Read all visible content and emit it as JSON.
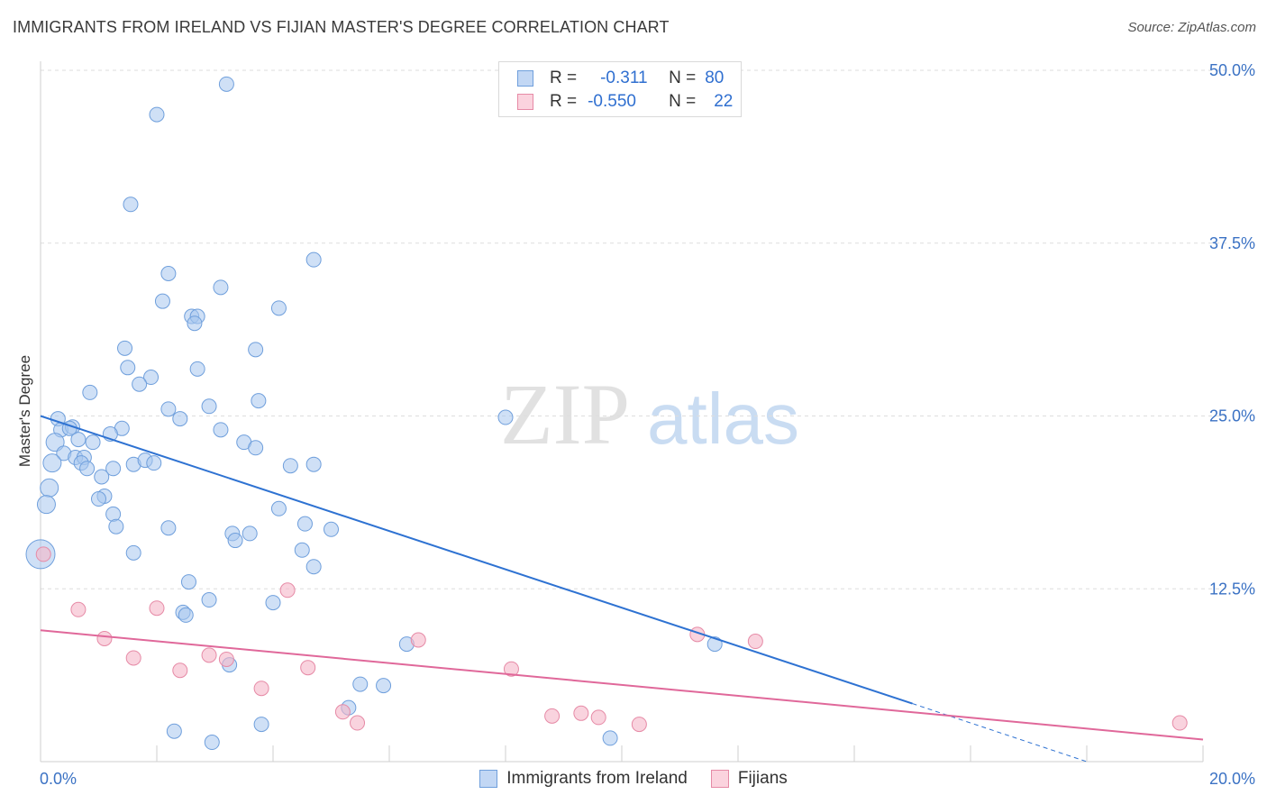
{
  "header": {
    "title": "IMMIGRANTS FROM IRELAND VS FIJIAN MASTER'S DEGREE CORRELATION CHART",
    "source": "Source: ZipAtlas.com"
  },
  "watermark": {
    "part1": "ZIP",
    "part2": "atlas"
  },
  "stats": [
    {
      "r_label": "R =",
      "r_value": "-0.311",
      "n_label": "N =",
      "n_value": "80",
      "color": "#a8c6ef"
    },
    {
      "r_label": "R =",
      "r_value": "-0.550",
      "n_label": "N =",
      "n_value": "22",
      "color": "#f5b6c8"
    }
  ],
  "legend": [
    {
      "label": "Immigrants from Ireland",
      "color": "#a8c6ef"
    },
    {
      "label": "Fijians",
      "color": "#f5b6c8"
    }
  ],
  "chart_data": {
    "type": "scatter",
    "title": "IMMIGRANTS FROM IRELAND VS FIJIAN MASTER'S DEGREE CORRELATION CHART",
    "xlabel": "",
    "ylabel": "Master's Degree",
    "xlim": [
      0,
      20
    ],
    "ylim": [
      0,
      50
    ],
    "x_tick_labels": [
      "0.0%",
      "20.0%"
    ],
    "y_tick_labels": [
      "50.0%",
      "37.5%",
      "25.0%",
      "12.5%"
    ],
    "y_ticks": [
      50,
      37.5,
      25,
      12.5
    ],
    "colors": {
      "blue_fill": "#a8c6ef",
      "blue_stroke": "#6f9fdc",
      "blue_line": "#2e72d2",
      "pink_fill": "#f5b6c8",
      "pink_stroke": "#e68aa6",
      "pink_line": "#e0689a",
      "tick_text": "#3b72c4"
    },
    "series": [
      {
        "name": "Immigrants from Ireland",
        "points": [
          [
            3.2,
            49
          ],
          [
            2.0,
            46.8
          ],
          [
            1.55,
            40.3
          ],
          [
            4.7,
            36.3
          ],
          [
            2.2,
            35.3
          ],
          [
            3.1,
            34.3
          ],
          [
            2.1,
            33.3
          ],
          [
            4.1,
            32.8
          ],
          [
            2.6,
            32.2
          ],
          [
            2.7,
            32.2
          ],
          [
            2.65,
            31.7
          ],
          [
            1.45,
            29.9
          ],
          [
            3.7,
            29.8
          ],
          [
            1.5,
            28.5
          ],
          [
            2.7,
            28.4
          ],
          [
            1.9,
            27.8
          ],
          [
            1.7,
            27.3
          ],
          [
            0.85,
            26.7
          ],
          [
            3.75,
            26.1
          ],
          [
            2.9,
            25.7
          ],
          [
            2.2,
            25.5
          ],
          [
            2.4,
            24.8
          ],
          [
            8.0,
            24.9
          ],
          [
            0.3,
            24.8
          ],
          [
            0.35,
            24.0
          ],
          [
            0.55,
            24.2
          ],
          [
            0.5,
            24.1
          ],
          [
            1.4,
            24.1
          ],
          [
            3.1,
            24.0
          ],
          [
            1.2,
            23.7
          ],
          [
            0.25,
            23.1
          ],
          [
            0.65,
            23.3
          ],
          [
            0.9,
            23.1
          ],
          [
            3.5,
            23.1
          ],
          [
            0.4,
            22.3
          ],
          [
            3.7,
            22.7
          ],
          [
            0.6,
            22.0
          ],
          [
            0.75,
            22.0
          ],
          [
            1.6,
            21.5
          ],
          [
            1.8,
            21.8
          ],
          [
            1.95,
            21.6
          ],
          [
            1.25,
            21.2
          ],
          [
            0.7,
            21.6
          ],
          [
            0.8,
            21.2
          ],
          [
            0.2,
            21.6
          ],
          [
            4.3,
            21.4
          ],
          [
            4.7,
            21.5
          ],
          [
            1.05,
            20.6
          ],
          [
            0.15,
            19.8
          ],
          [
            1.1,
            19.2
          ],
          [
            1.0,
            19.0
          ],
          [
            0.1,
            18.6
          ],
          [
            4.1,
            18.3
          ],
          [
            1.25,
            17.9
          ],
          [
            1.3,
            17.0
          ],
          [
            4.55,
            17.2
          ],
          [
            2.2,
            16.9
          ],
          [
            3.3,
            16.5
          ],
          [
            5.0,
            16.8
          ],
          [
            3.6,
            16.5
          ],
          [
            3.35,
            16.0
          ],
          [
            4.5,
            15.3
          ],
          [
            1.6,
            15.1
          ],
          [
            4.7,
            14.1
          ],
          [
            0.0,
            15.0
          ],
          [
            2.55,
            13.0
          ],
          [
            2.9,
            11.7
          ],
          [
            4.0,
            11.5
          ],
          [
            2.45,
            10.8
          ],
          [
            2.5,
            10.6
          ],
          [
            6.3,
            8.5
          ],
          [
            11.6,
            8.5
          ],
          [
            3.25,
            7.0
          ],
          [
            5.5,
            5.6
          ],
          [
            5.9,
            5.5
          ],
          [
            3.8,
            2.7
          ],
          [
            2.3,
            2.2
          ],
          [
            2.95,
            1.4
          ],
          [
            9.8,
            1.7
          ],
          [
            5.3,
            3.9
          ]
        ]
      },
      {
        "name": "Fijians",
        "points": [
          [
            0.05,
            15.0
          ],
          [
            0.65,
            11.0
          ],
          [
            2.0,
            11.1
          ],
          [
            4.25,
            12.4
          ],
          [
            1.1,
            8.9
          ],
          [
            1.6,
            7.5
          ],
          [
            2.4,
            6.6
          ],
          [
            2.9,
            7.7
          ],
          [
            3.2,
            7.4
          ],
          [
            3.8,
            5.3
          ],
          [
            4.6,
            6.8
          ],
          [
            5.2,
            3.6
          ],
          [
            5.45,
            2.8
          ],
          [
            6.5,
            8.8
          ],
          [
            8.1,
            6.7
          ],
          [
            8.8,
            3.3
          ],
          [
            9.3,
            3.5
          ],
          [
            9.6,
            3.2
          ],
          [
            10.3,
            2.7
          ],
          [
            11.3,
            9.2
          ],
          [
            12.3,
            8.7
          ],
          [
            19.6,
            2.8
          ]
        ]
      }
    ],
    "trendlines": [
      {
        "series": "Immigrants from Ireland",
        "x": [
          0.0,
          15.0
        ],
        "y": [
          25.0,
          4.2
        ],
        "dashed_extension": {
          "x": [
            15.0,
            18.0
          ],
          "y": [
            4.2,
            0.0
          ]
        }
      },
      {
        "series": "Fijians",
        "x": [
          0.0,
          20.0
        ],
        "y": [
          9.5,
          1.6
        ]
      }
    ]
  }
}
